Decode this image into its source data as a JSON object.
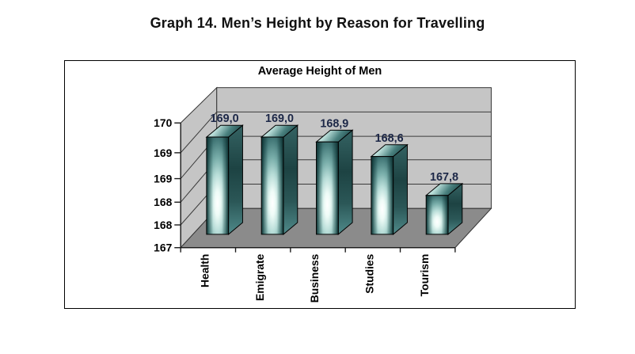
{
  "page_title": "Graph 14. Men’s Height by Reason for Travelling",
  "chart_data": {
    "type": "bar",
    "projection": "3d-perspective",
    "title": "Average Height of Men",
    "categories": [
      "Health",
      "Emigrate",
      "Business",
      "Studies",
      "Tourism"
    ],
    "values": [
      169.0,
      169.0,
      168.9,
      168.6,
      167.8
    ],
    "data_labels": [
      "169,0",
      "169,0",
      "168,9",
      "168,6",
      "167,8"
    ],
    "xlabel": "",
    "ylabel": "",
    "ylim": [
      167,
      170
    ],
    "y_tick_values": [
      167,
      167.6,
      168.2,
      168.8,
      169.4,
      170
    ],
    "y_tick_labels": [
      "167",
      "168",
      "168",
      "169",
      "169",
      "170"
    ],
    "grid": true,
    "legend": false,
    "colors": {
      "bar_darkest": "#1d4444",
      "bar_dark": "#2b5757",
      "bar_mid": "#79aeaa",
      "bar_light": "#b8ddd8",
      "bar_highlight": "#ffffff",
      "wall": "#c5c5c5",
      "floor": "#8b8b8b",
      "gridline": "#3a3a3a",
      "outline": "#000000",
      "data_label_color": "#1c2747"
    }
  }
}
